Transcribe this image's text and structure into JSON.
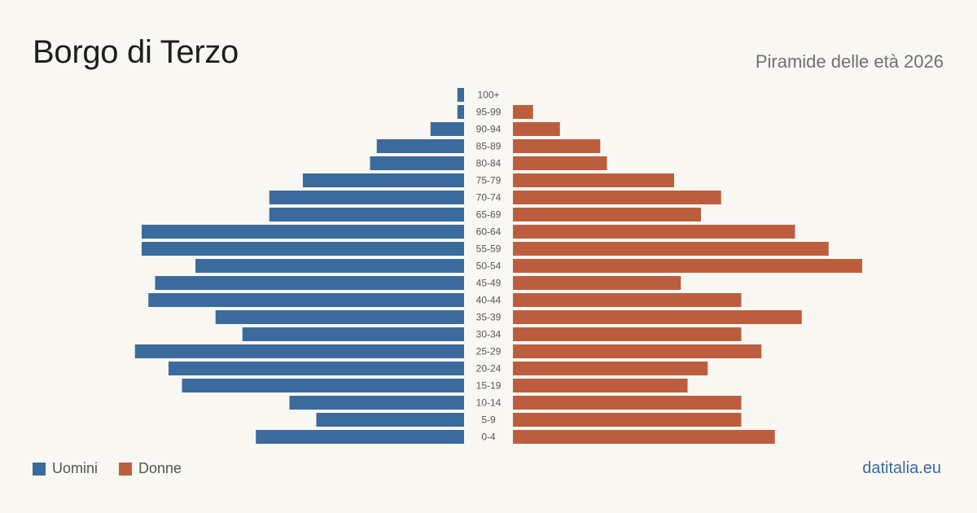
{
  "header": {
    "title": "Borgo di Terzo",
    "subtitle": "Piramide delle età 2026"
  },
  "legend": {
    "men_label": "Uomini",
    "women_label": "Donne"
  },
  "footer": {
    "source": "datitalia.eu"
  },
  "colors": {
    "men": "#3b6b9c",
    "women": "#bc5e3e",
    "background": "#f9f7f2",
    "age_label": "#555555"
  },
  "chart_data": {
    "type": "bar",
    "orientation": "horizontal-pyramid",
    "categories": [
      "100+",
      "95-99",
      "90-94",
      "85-89",
      "80-84",
      "75-79",
      "70-74",
      "65-69",
      "60-64",
      "55-59",
      "50-54",
      "45-49",
      "40-44",
      "35-39",
      "30-34",
      "25-29",
      "20-24",
      "15-19",
      "10-14",
      "5-9",
      "0-4"
    ],
    "series": [
      {
        "name": "Uomini",
        "side": "left",
        "values": [
          1,
          1,
          5,
          13,
          14,
          24,
          29,
          29,
          48,
          48,
          40,
          46,
          47,
          37,
          33,
          49,
          44,
          42,
          26,
          22,
          31
        ]
      },
      {
        "name": "Donne",
        "side": "right",
        "values": [
          0,
          3,
          7,
          13,
          14,
          24,
          31,
          28,
          42,
          47,
          52,
          25,
          34,
          43,
          34,
          37,
          29,
          26,
          34,
          34,
          39
        ]
      }
    ],
    "grid": false,
    "legend_position": "bottom-left"
  }
}
